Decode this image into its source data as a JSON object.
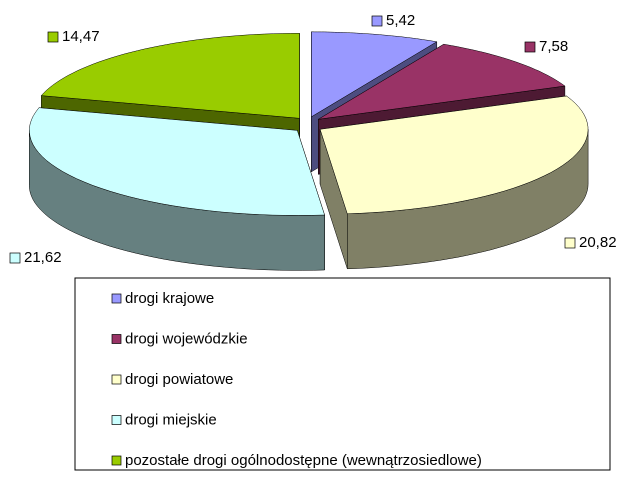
{
  "chart_data": {
    "type": "pie",
    "categories": [
      "drogi krajowe",
      "drogi wojewódzkie",
      "drogi powiatowe",
      "drogi miejskie",
      "pozostałe drogi ogólnodostępne (wewnątrzosiedlowe)"
    ],
    "values": [
      5.42,
      7.58,
      20.82,
      21.62,
      14.47
    ],
    "value_labels": [
      "5,42",
      "7,58",
      "20,82",
      "21,62",
      "14,47"
    ],
    "colors": [
      "#9999ff",
      "#993366",
      "#ffffcc",
      "#ccffff",
      "#99cc00"
    ]
  }
}
